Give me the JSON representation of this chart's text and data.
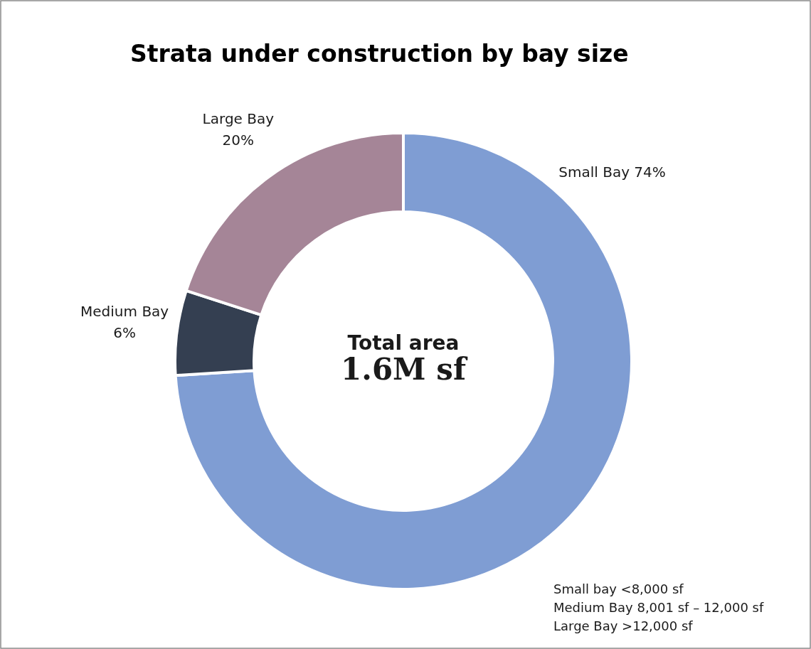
{
  "chart_data": {
    "type": "donut",
    "title": "Strata under construction by bay size",
    "categories": [
      "Small Bay",
      "Medium Bay",
      "Large Bay"
    ],
    "values": [
      74,
      6,
      20
    ],
    "colors": [
      "#7f9dd3",
      "#343f51",
      "#a58597"
    ],
    "value_labels": [
      "74%",
      "6%",
      "20%"
    ],
    "legend": false,
    "annotations": [
      "Total area",
      "1.6M sf",
      "Small bay <8,000 sf",
      "Medium Bay 8,001 sf – 12,000 sf",
      "Large Bay >12,000 sf"
    ]
  }
}
